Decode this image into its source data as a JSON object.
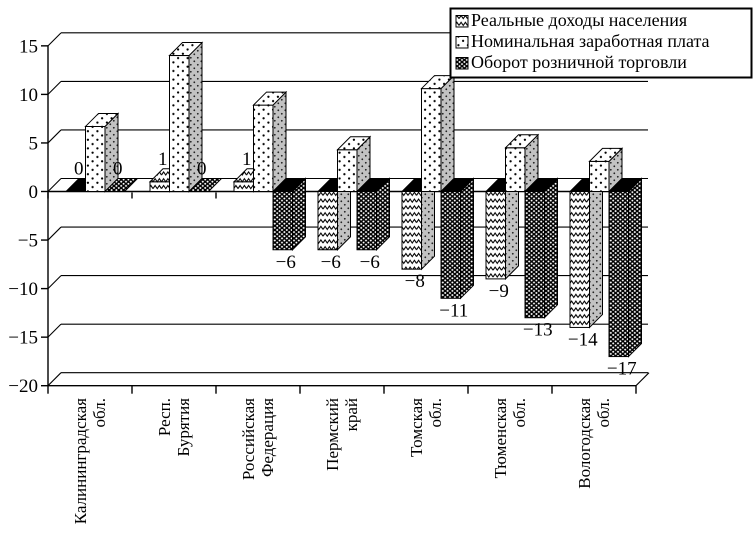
{
  "figure": {
    "description": "3D clustered bar chart, monochrome pattern fills, %",
    "background": "#ffffff"
  },
  "chart_data": {
    "type": "bar",
    "projection": "3d",
    "title": "",
    "xlabel": "",
    "ylabel": "",
    "categories": [
      [
        "Калининградская",
        "обл."
      ],
      [
        "Респ.",
        "Бурятия"
      ],
      [
        "Российская",
        "Федерация"
      ],
      [
        "Пермский",
        "край"
      ],
      [
        "Томская",
        "обл."
      ],
      [
        "Тюменская",
        "обл."
      ],
      [
        "Вологодская",
        "обл."
      ]
    ],
    "series": [
      {
        "name": "Реальные доходы населения",
        "fill_pattern": "wave",
        "values": [
          0,
          1,
          1,
          -6,
          -8,
          -9,
          -14
        ],
        "point_labels": [
          "0",
          "1",
          "1",
          "−6",
          "−8",
          "−9",
          "−14"
        ]
      },
      {
        "name": "Номинальная заработная плата",
        "fill_pattern": "dots",
        "values": [
          6.7,
          14,
          8.9,
          4.3,
          10.6,
          4.5,
          3.1
        ],
        "point_labels": null
      },
      {
        "name": "Оборот розничной торговли",
        "fill_pattern": "dense-grid",
        "values": [
          0,
          0,
          -6,
          -6,
          -11,
          -13,
          -17
        ],
        "point_labels": [
          "0",
          "0",
          "−6",
          "−6",
          "−11",
          "−13",
          "−17"
        ]
      }
    ],
    "ylim": [
      -20,
      15
    ],
    "yticks": [
      15,
      10,
      5,
      0,
      -5,
      -10,
      -15,
      -20
    ],
    "ytick_labels": [
      "15",
      "10",
      "5",
      "0",
      "−5",
      "−10",
      "−15",
      "−20"
    ],
    "grid": true,
    "legend_position": "top-right"
  },
  "colors": {
    "ink": "#000000",
    "paper": "#ffffff",
    "bar_side_gray": "#c2c2c2"
  }
}
